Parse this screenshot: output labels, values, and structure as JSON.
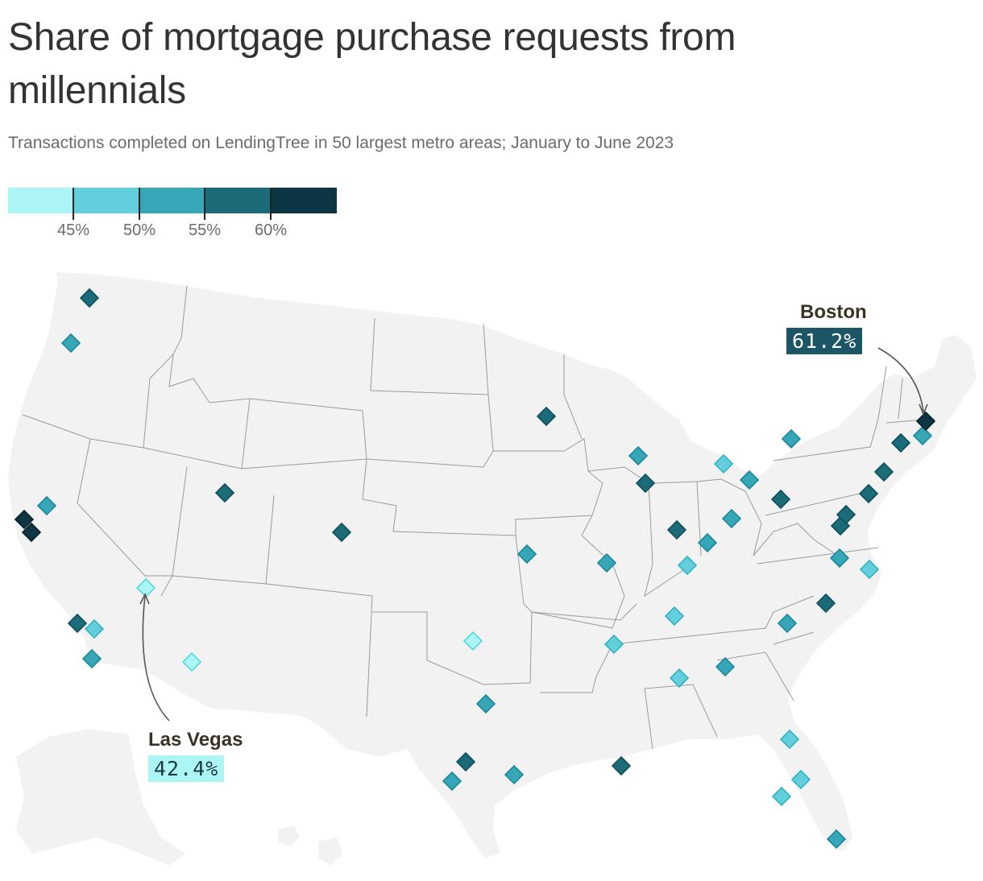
{
  "title": "Share of mortgage purchase requests from millennials",
  "subtitle": "Transactions completed on LendingTree in 50 largest metro areas; January to June 2023",
  "legend": {
    "colors": [
      "#acf5f5",
      "#63cfdc",
      "#37a6b7",
      "#1c6b79",
      "#0d3645"
    ],
    "ticks": [
      "45%",
      "50%",
      "55%",
      "60%"
    ]
  },
  "map": {
    "land_color": "#f2f2f2",
    "border_color": "#9a9a9a"
  },
  "callouts": {
    "boston": {
      "name": "Boston",
      "value": "61.2%"
    },
    "las_vegas": {
      "name": "Las Vegas",
      "value": "42.4%"
    }
  },
  "markers": [
    {
      "bin": 3
    },
    {
      "bin": 2
    },
    {
      "bin": 4
    },
    {
      "bin": 4
    },
    {
      "bin": 2
    },
    {
      "bin": 3
    },
    {
      "bin": 1
    },
    {
      "bin": 3
    },
    {
      "bin": 2
    },
    {
      "bin": 0
    },
    {
      "bin": 0
    },
    {
      "bin": 3
    },
    {
      "bin": 3
    },
    {
      "bin": 2
    },
    {
      "bin": 2
    },
    {
      "bin": 2
    },
    {
      "bin": 3
    },
    {
      "bin": 1
    },
    {
      "bin": 3
    },
    {
      "bin": 1
    },
    {
      "bin": 2
    },
    {
      "bin": 2
    },
    {
      "bin": 3
    },
    {
      "bin": 2
    },
    {
      "bin": 2
    },
    {
      "bin": 1
    },
    {
      "bin": 0
    },
    {
      "bin": 2
    },
    {
      "bin": 3
    },
    {
      "bin": 2
    },
    {
      "bin": 2
    },
    {
      "bin": 1
    },
    {
      "bin": 1
    },
    {
      "bin": 2
    },
    {
      "bin": 2
    },
    {
      "bin": 3
    },
    {
      "bin": 2
    },
    {
      "bin": 1
    },
    {
      "bin": 1
    },
    {
      "bin": 1
    },
    {
      "bin": 1
    },
    {
      "bin": 2
    },
    {
      "bin": 3
    },
    {
      "bin": 3
    },
    {
      "bin": 3
    },
    {
      "bin": 3
    },
    {
      "bin": 3
    },
    {
      "bin": 2
    },
    {
      "bin": 4
    },
    {
      "bin": 3
    }
  ]
}
